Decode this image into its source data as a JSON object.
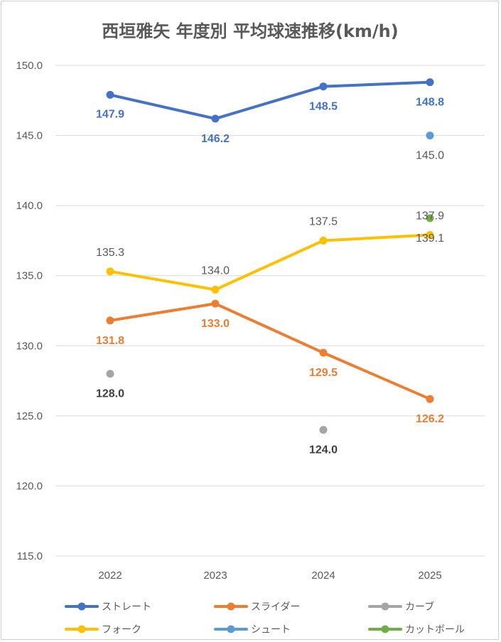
{
  "chart_data": {
    "type": "line",
    "title": "西垣雅矢 年度別 平均球速推移(km/h)",
    "categories": [
      "2022",
      "2023",
      "2024",
      "2025"
    ],
    "ylim": [
      115,
      150
    ],
    "yticks": [
      "150.0",
      "145.0",
      "140.0",
      "135.0",
      "130.0",
      "125.0",
      "120.0",
      "115.0"
    ],
    "grid": true,
    "legend_position": "bottom",
    "series": [
      {
        "name": "ストレート",
        "color": "#4472C4",
        "values": [
          147.9,
          146.2,
          148.5,
          148.8
        ],
        "labels": [
          "147.9",
          "146.2",
          "148.5",
          "148.8"
        ]
      },
      {
        "name": "スライダー",
        "color": "#ED7D31",
        "values": [
          131.8,
          133.0,
          129.5,
          126.2
        ],
        "labels": [
          "131.8",
          "133.0",
          "129.5",
          "126.2"
        ]
      },
      {
        "name": "カーブ",
        "color": "#A5A5A5",
        "values": [
          128.0,
          null,
          124.0,
          null
        ],
        "labels": [
          "128.0",
          "",
          "124.0",
          ""
        ]
      },
      {
        "name": "フォーク",
        "color": "#FFC000",
        "values": [
          135.3,
          134.0,
          137.5,
          137.9
        ],
        "labels": [
          "135.3",
          "134.0",
          "137.5",
          "137.9"
        ]
      },
      {
        "name": "シュート",
        "color": "#5B9BD5",
        "values": [
          null,
          null,
          null,
          145.0
        ],
        "labels": [
          "",
          "",
          "",
          "145.0"
        ]
      },
      {
        "name": "カットボール",
        "color": "#70AD47",
        "values": [
          null,
          null,
          null,
          139.1
        ],
        "labels": [
          "",
          "",
          "",
          "139.1"
        ]
      }
    ]
  }
}
